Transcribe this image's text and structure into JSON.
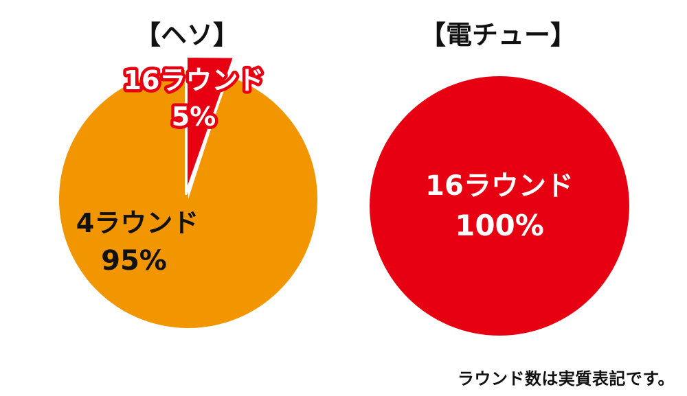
{
  "chart_data": [
    {
      "type": "pie",
      "title": "【ヘソ】",
      "slices": [
        {
          "label": "4ラウンド",
          "value_label": "95%",
          "value": 95,
          "color": "#f29600"
        },
        {
          "label": "16ラウンド",
          "value_label": "5%",
          "value": 5,
          "color": "#e60012"
        }
      ]
    },
    {
      "type": "pie",
      "title": "【電チュー】",
      "slices": [
        {
          "label": "16ラウンド",
          "value_label": "100%",
          "value": 100,
          "color": "#e60012"
        }
      ]
    }
  ],
  "footnote": "ラウンド数は実質表記です。",
  "colors": {
    "label_dark": "#111111",
    "label_light": "#ffffff",
    "outline": "#e60012"
  }
}
